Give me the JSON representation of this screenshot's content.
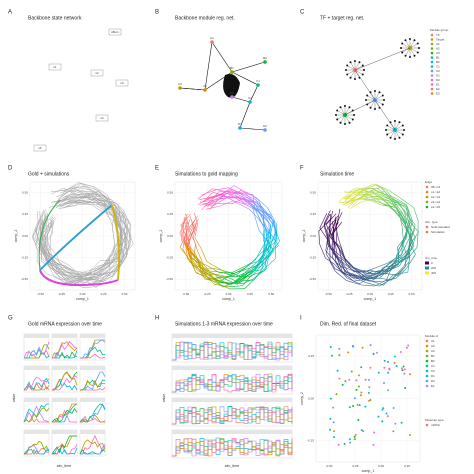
{
  "panels": [
    {
      "letter": "A",
      "title": "Backbone state network",
      "nodes": [
        "sBurn",
        "s1",
        "s2",
        "s3",
        "s4",
        "s5"
      ]
    },
    {
      "letter": "B",
      "title": "Backbone module reg. net.",
      "nodes": [
        "A1",
        "A2",
        "A3",
        "B1",
        "B2",
        "C1",
        "C2",
        "D1",
        "D2",
        "E1"
      ]
    },
    {
      "letter": "C",
      "title": "TF + target reg. net."
    },
    {
      "letter": "D",
      "title": "Gold + simulations",
      "xlabel": "comp_1",
      "ylabel": "comp_2",
      "xticks": [
        "-0.50",
        "-0.25",
        "0.00",
        "0.25",
        "0.50"
      ],
      "yticks": [
        "-0.50",
        "-0.25",
        "0.00",
        "0.25",
        "0.50"
      ]
    },
    {
      "letter": "E",
      "title": "Simulations to gold mapping",
      "xlabel": "comp_1",
      "ylabel": "comp_2",
      "xticks": [
        "-0.50",
        "-0.25",
        "0.00",
        "0.25",
        "0.50"
      ],
      "yticks": [
        "-0.50",
        "-0.25",
        "0.00",
        "0.25",
        "0.50"
      ]
    },
    {
      "letter": "F",
      "title": "Simulation time",
      "xlabel": "comp_1",
      "ylabel": "comp_2",
      "xticks": [
        "-0.50",
        "-0.25",
        "0.00",
        "0.25",
        "0.50"
      ],
      "yticks": [
        "-0.50",
        "-0.25",
        "0.00",
        "0.25",
        "0.50"
      ]
    },
    {
      "letter": "G",
      "title": "Gold mRNA expression over time",
      "xlabel": "sim_time",
      "ylabel": "value"
    },
    {
      "letter": "H",
      "title": "Simulations 1-3 mRNA expression over time",
      "xlabel": "sim_time",
      "ylabel": "value"
    },
    {
      "letter": "I",
      "title": "Dim. Red. of final dataset",
      "xlabel": "comp_1",
      "ylabel": "comp_2",
      "xticks": [
        "-0.50",
        "-0.25",
        "0.00",
        "0.25"
      ],
      "yticks": [
        "-0.25",
        "0.00",
        "0.25"
      ]
    }
  ],
  "legends": [
    {
      "title": "Module group",
      "items": [
        "TF",
        "Target",
        "A1",
        "A2",
        "A3",
        "B1",
        "B2",
        "C1",
        "C2",
        "D1",
        "D2",
        "E1",
        "E2",
        "E3"
      ]
    },
    {
      "title": "Edge",
      "items": [
        "sB->s1",
        "s1->s2",
        "s2->s3",
        "s3->s4",
        "s4->s5"
      ]
    },
    {
      "title": "Sim. type",
      "items": [
        "Gold standard",
        "Simulation"
      ]
    },
    {
      "title": "sim_time",
      "items": [
        "0",
        "200",
        "400"
      ]
    },
    {
      "title": "Module id",
      "items": [
        "A1",
        "A2",
        "A3",
        "B1",
        "B2",
        "C1",
        "C2",
        "D1",
        "D2",
        "E1"
      ]
    },
    {
      "title": "Molecule type",
      "items": [
        "mRNA"
      ]
    }
  ]
}
